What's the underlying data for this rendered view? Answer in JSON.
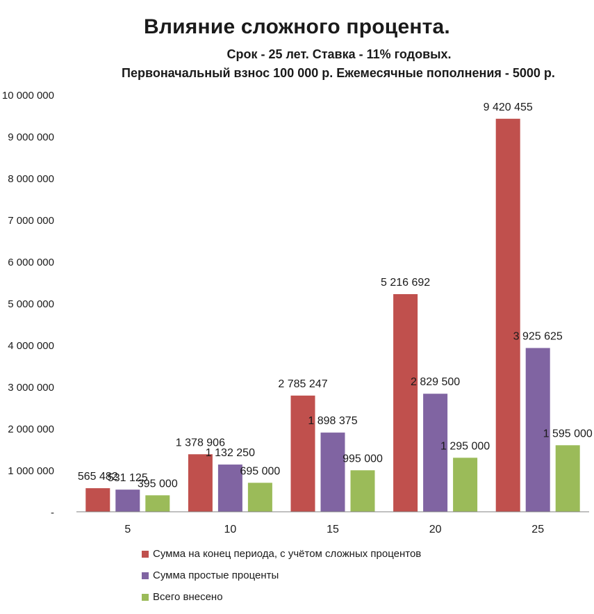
{
  "title": "Влияние сложного процента.",
  "subtitle1": "Срок - 25 лет. Ставка - 11% годовых.",
  "subtitle2": "Первоначальный взнос 100 000 р. Ежемесячные пополнения - 5000 р.",
  "chart_data": {
    "type": "bar",
    "title": "Влияние сложного процента.",
    "categories": [
      "5",
      "10",
      "15",
      "20",
      "25"
    ],
    "series": [
      {
        "name": "Сумма на конец периода, с учётом сложных процентов",
        "color": "#c0504d",
        "values": [
          565482,
          1378906,
          2785247,
          5216692,
          9420455
        ],
        "labels": [
          "565 482",
          "1 378 906",
          "2 785 247",
          "5 216 692",
          "9 420 455"
        ]
      },
      {
        "name": "Сумма простые проценты",
        "color": "#8064a2",
        "values": [
          531125,
          1132250,
          1898375,
          2829500,
          3925625
        ],
        "labels": [
          "531 125",
          "1 132 250",
          "1 898 375",
          "2 829 500",
          "3 925 625"
        ]
      },
      {
        "name": "Всего внесено",
        "color": "#9bbb59",
        "values": [
          395000,
          695000,
          995000,
          1295000,
          1595000
        ],
        "labels": [
          "395 000",
          "695 000",
          "995 000",
          "1 295 000",
          "1 595 000"
        ]
      }
    ],
    "ylim": [
      0,
      10000000
    ],
    "yticks": [
      0,
      1000000,
      2000000,
      3000000,
      4000000,
      5000000,
      6000000,
      7000000,
      8000000,
      9000000,
      10000000
    ],
    "ytick_labels": [
      "-",
      "1 000 000",
      "2 000 000",
      "3 000 000",
      "4 000 000",
      "5 000 000",
      "6 000 000",
      "7 000 000",
      "8 000 000",
      "9 000 000",
      "10 000 000"
    ],
    "grid": false,
    "legend": "bottom"
  }
}
